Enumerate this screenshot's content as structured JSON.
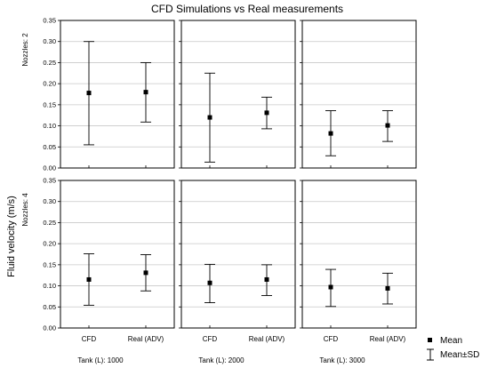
{
  "chart_data": {
    "type": "scatter",
    "title": "CFD Simulations vs Real measurements",
    "ylabel": "Fluid velocity (m/s)",
    "ylim": [
      0,
      0.35
    ],
    "yticks": [
      "0.00",
      "0.05",
      "0.10",
      "0.15",
      "0.20",
      "0.25",
      "0.30",
      "0.35"
    ],
    "categories": [
      "CFD",
      "Real (ADV)"
    ],
    "row_labels": [
      "Nozzles: 2",
      "Nozzles: 4"
    ],
    "col_labels": [
      "Tank (L): 1000",
      "Tank (L): 2000",
      "Tank (L): 3000"
    ],
    "grid": true,
    "legend_position": "bottom-right",
    "legend": {
      "mean": "Mean",
      "sd": "Mean±SD"
    },
    "panels": [
      {
        "row": 0,
        "col": 0,
        "points": [
          {
            "mean": 0.178,
            "lo": 0.055,
            "hi": 0.3
          },
          {
            "mean": 0.18,
            "lo": 0.109,
            "hi": 0.25
          }
        ]
      },
      {
        "row": 0,
        "col": 1,
        "points": [
          {
            "mean": 0.12,
            "lo": 0.014,
            "hi": 0.225
          },
          {
            "mean": 0.131,
            "lo": 0.093,
            "hi": 0.168
          }
        ]
      },
      {
        "row": 0,
        "col": 2,
        "points": [
          {
            "mean": 0.082,
            "lo": 0.029,
            "hi": 0.136
          },
          {
            "mean": 0.101,
            "lo": 0.063,
            "hi": 0.136
          }
        ]
      },
      {
        "row": 1,
        "col": 0,
        "points": [
          {
            "mean": 0.115,
            "lo": 0.054,
            "hi": 0.176
          },
          {
            "mean": 0.131,
            "lo": 0.088,
            "hi": 0.174
          }
        ]
      },
      {
        "row": 1,
        "col": 1,
        "points": [
          {
            "mean": 0.107,
            "lo": 0.06,
            "hi": 0.151
          },
          {
            "mean": 0.115,
            "lo": 0.077,
            "hi": 0.15
          }
        ]
      },
      {
        "row": 1,
        "col": 2,
        "points": [
          {
            "mean": 0.097,
            "lo": 0.051,
            "hi": 0.139
          },
          {
            "mean": 0.094,
            "lo": 0.057,
            "hi": 0.13
          }
        ]
      }
    ]
  }
}
